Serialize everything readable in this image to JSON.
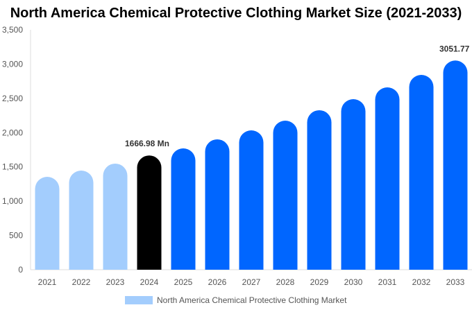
{
  "chart_data": {
    "type": "bar",
    "title": "North America Chemical Protective Clothing Market Size (2021-2033)",
    "categories": [
      "2021",
      "2022",
      "2023",
      "2024",
      "2025",
      "2026",
      "2027",
      "2028",
      "2029",
      "2030",
      "2031",
      "2032",
      "2033"
    ],
    "series": [
      {
        "name": "North America Chemical Protective Clothing Market",
        "values": [
          1355,
          1446,
          1548,
          1666.98,
          1770,
          1902,
          2033,
          2175,
          2327,
          2488,
          2660,
          2842,
          3051.77
        ]
      }
    ],
    "data_labels": {
      "3": "1666.98 Mn",
      "12": "3051.77 Mn"
    },
    "ylim": [
      0,
      3500
    ],
    "yticks": [
      0,
      500,
      1000,
      1500,
      2000,
      2500,
      3000,
      3500
    ],
    "ytick_labels": [
      "0",
      "500",
      "1,000",
      "1,500",
      "2,000",
      "2,500",
      "3,000",
      "3,500"
    ],
    "grid": false,
    "legend": "bottom",
    "colors": {
      "historical": "#a3cdfd",
      "base_year": "#000000",
      "forecast": "#0066ff"
    }
  }
}
